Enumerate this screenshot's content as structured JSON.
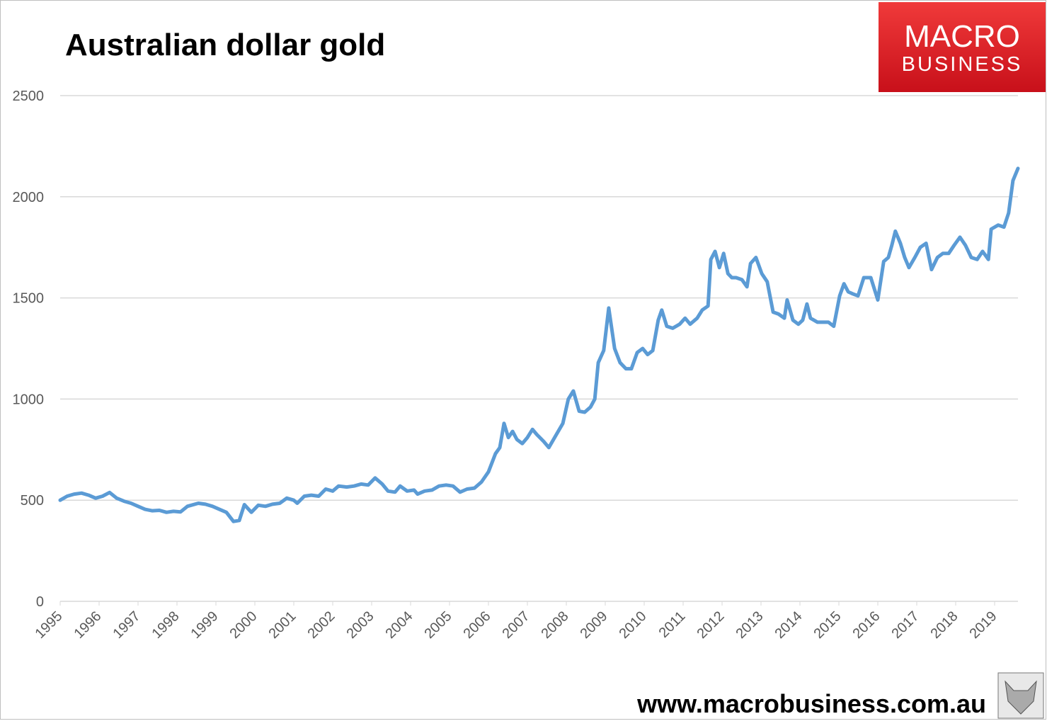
{
  "chart_data": {
    "type": "line",
    "title": "Australian dollar gold",
    "x": [
      1995.0,
      1995.18,
      1995.36,
      1995.55,
      1995.73,
      1995.91,
      1996.09,
      1996.27,
      1996.45,
      1996.64,
      1996.82,
      1997.0,
      1997.18,
      1997.36,
      1997.55,
      1997.73,
      1997.91,
      1998.09,
      1998.27,
      1998.55,
      1998.73,
      1998.91,
      1999.09,
      1999.27,
      1999.45,
      1999.6,
      1999.73,
      1999.91,
      2000.09,
      2000.27,
      2000.45,
      2000.64,
      2000.82,
      2001.0,
      2001.09,
      2001.27,
      2001.45,
      2001.64,
      2001.82,
      2002.0,
      2002.15,
      2002.36,
      2002.55,
      2002.73,
      2002.91,
      2003.09,
      2003.27,
      2003.42,
      2003.6,
      2003.73,
      2003.91,
      2004.09,
      2004.18,
      2004.36,
      2004.55,
      2004.73,
      2004.91,
      2005.09,
      2005.27,
      2005.45,
      2005.64,
      2005.82,
      2006.0,
      2006.18,
      2006.29,
      2006.4,
      2006.51,
      2006.62,
      2006.73,
      2006.87,
      2007.0,
      2007.13,
      2007.24,
      2007.42,
      2007.55,
      2007.73,
      2007.91,
      2008.05,
      2008.18,
      2008.33,
      2008.47,
      2008.62,
      2008.73,
      2008.82,
      2008.96,
      2009.09,
      2009.24,
      2009.38,
      2009.53,
      2009.67,
      2009.82,
      2009.96,
      2010.09,
      2010.22,
      2010.36,
      2010.45,
      2010.58,
      2010.73,
      2010.91,
      2011.05,
      2011.18,
      2011.36,
      2011.49,
      2011.64,
      2011.71,
      2011.82,
      2011.93,
      2012.04,
      2012.15,
      2012.25,
      2012.36,
      2012.51,
      2012.64,
      2012.73,
      2012.87,
      2013.02,
      2013.16,
      2013.31,
      2013.45,
      2013.6,
      2013.67,
      2013.82,
      2013.96,
      2014.07,
      2014.18,
      2014.27,
      2014.45,
      2014.64,
      2014.73,
      2014.87,
      2015.02,
      2015.13,
      2015.24,
      2015.36,
      2015.49,
      2015.64,
      2015.82,
      2016.0,
      2016.15,
      2016.27,
      2016.36,
      2016.45,
      2016.58,
      2016.69,
      2016.8,
      2016.95,
      2017.09,
      2017.24,
      2017.38,
      2017.53,
      2017.67,
      2017.82,
      2017.96,
      2018.11,
      2018.25,
      2018.4,
      2018.55,
      2018.69,
      2018.84,
      2018.91,
      2019.09,
      2019.24,
      2019.36,
      2019.47,
      2019.6
    ],
    "series": [
      {
        "color": "#5b9bd5",
        "values": [
          500,
          520,
          530,
          535,
          525,
          510,
          520,
          538,
          510,
          495,
          485,
          470,
          455,
          448,
          450,
          440,
          445,
          442,
          470,
          485,
          480,
          470,
          455,
          440,
          395,
          400,
          478,
          440,
          475,
          470,
          480,
          485,
          510,
          500,
          485,
          520,
          525,
          520,
          555,
          545,
          570,
          565,
          570,
          580,
          575,
          610,
          580,
          545,
          540,
          570,
          545,
          550,
          530,
          545,
          550,
          570,
          575,
          570,
          540,
          555,
          560,
          590,
          640,
          730,
          760,
          880,
          810,
          840,
          800,
          780,
          810,
          850,
          825,
          790,
          760,
          820,
          880,
          1000,
          1040,
          940,
          935,
          960,
          1000,
          1180,
          1240,
          1450,
          1250,
          1180,
          1150,
          1150,
          1230,
          1250,
          1220,
          1240,
          1390,
          1440,
          1360,
          1350,
          1370,
          1400,
          1370,
          1400,
          1440,
          1460,
          1690,
          1730,
          1650,
          1720,
          1620,
          1600,
          1600,
          1590,
          1555,
          1670,
          1700,
          1620,
          1580,
          1430,
          1420,
          1400,
          1490,
          1390,
          1370,
          1390,
          1470,
          1400,
          1380,
          1380,
          1380,
          1360,
          1510,
          1570,
          1530,
          1520,
          1510,
          1600,
          1600,
          1490,
          1680,
          1700,
          1760,
          1830,
          1770,
          1700,
          1650,
          1700,
          1750,
          1770,
          1640,
          1700,
          1720,
          1720,
          1760,
          1800,
          1760,
          1700,
          1690,
          1730,
          1690,
          1840,
          1860,
          1850,
          1920,
          2080,
          2140
        ]
      }
    ],
    "xlim": [
      1995,
      2019.6
    ],
    "xticks": [
      1995,
      1996,
      1997,
      1998,
      1999,
      2000,
      2001,
      2002,
      2003,
      2004,
      2005,
      2006,
      2007,
      2008,
      2009,
      2010,
      2011,
      2012,
      2013,
      2014,
      2015,
      2016,
      2017,
      2018,
      2019
    ],
    "ylim": [
      0,
      2500
    ],
    "yticks": [
      0,
      500,
      1000,
      1500,
      2000,
      2500
    ],
    "grid": true
  },
  "logo": {
    "line1": "MACRO",
    "line2": "BUSINESS"
  },
  "website": "www.macrobusiness.com.au"
}
